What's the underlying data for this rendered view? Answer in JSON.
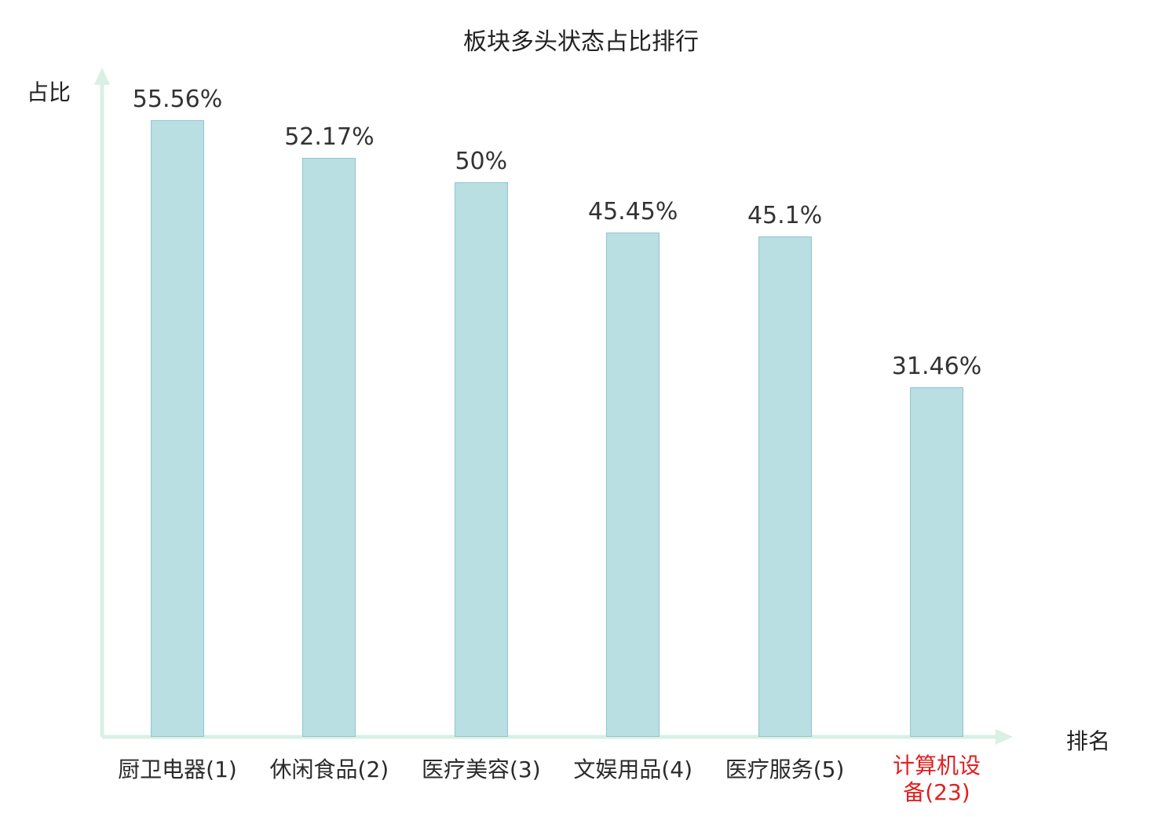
{
  "chart_data": {
    "type": "bar",
    "title": "板块多头状态占比排行",
    "xlabel": "排名",
    "ylabel": "占比",
    "categories": [
      "厨卫电器(1)",
      "休闲食品(2)",
      "医疗美容(3)",
      "文娱用品(4)",
      "医疗服务(5)",
      "计算机设备(23)"
    ],
    "values": [
      55.56,
      52.17,
      50,
      45.45,
      45.1,
      31.46
    ],
    "value_labels": [
      "55.56%",
      "52.17%",
      "50%",
      "45.45%",
      "45.1%",
      "31.46%"
    ],
    "highlight_index": 5,
    "ylim": [
      0,
      60
    ],
    "grid": false,
    "legend": "none",
    "bar_color": "#b9dfe3",
    "bar_border_color": "#8fc6cd",
    "axis_color": "#d9f0e5",
    "label_color": "#333333",
    "highlight_color": "#e02020"
  }
}
